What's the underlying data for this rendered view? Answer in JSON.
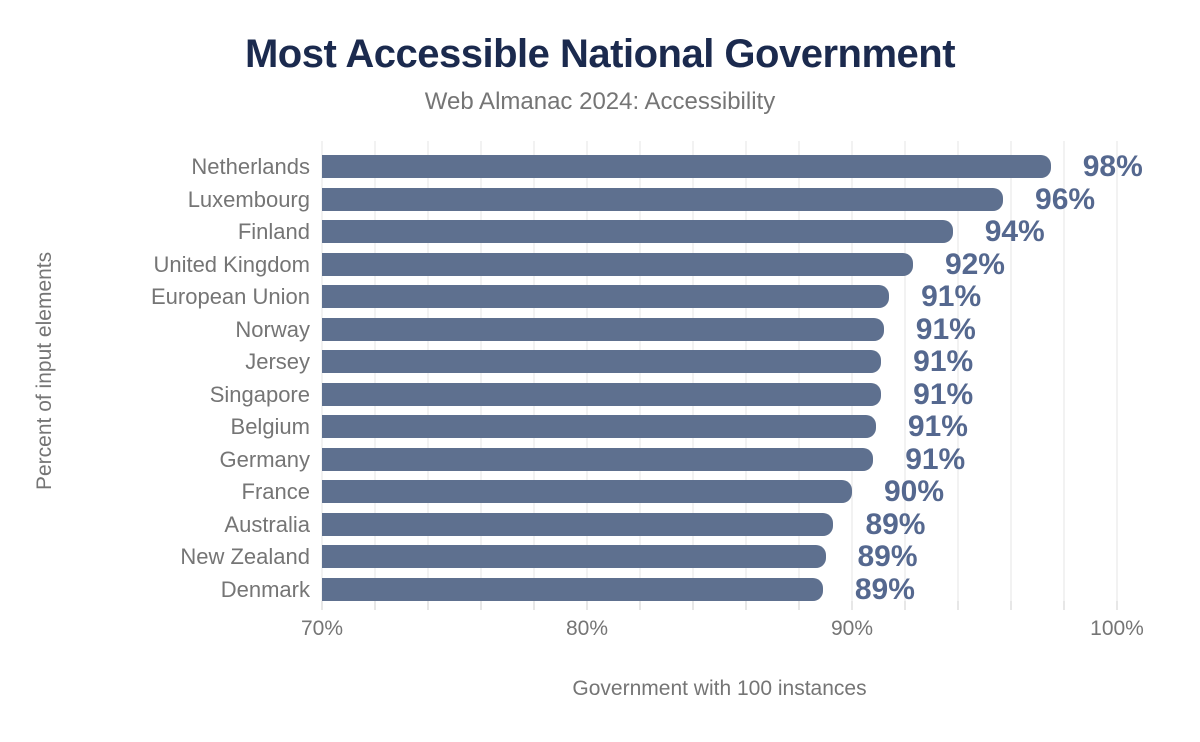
{
  "chart": {
    "title": "Most Accessible National Government",
    "subtitle": "Web Almanac 2024: Accessibility",
    "colors": {
      "title": "#1b2a4e",
      "bar": "#5e708f",
      "value_label": "#55688f",
      "muted_text": "#757575",
      "gridline": "#f2f2f2",
      "background": "#ffffff"
    }
  },
  "chart_data": {
    "type": "bar",
    "orientation": "horizontal",
    "title": "Most Accessible National Government",
    "subtitle": "Web Almanac 2024: Accessibility",
    "xlabel": "Government with 100 instances",
    "ylabel": "Percent of input elements",
    "categories": [
      "Netherlands",
      "Luxembourg",
      "Finland",
      "United Kingdom",
      "European Union",
      "Norway",
      "Jersey",
      "Singapore",
      "Belgium",
      "Germany",
      "France",
      "Australia",
      "New Zealand",
      "Denmark"
    ],
    "values": [
      98,
      96,
      94,
      92,
      91,
      91,
      91,
      91,
      91,
      91,
      90,
      89,
      89,
      89
    ],
    "value_labels": [
      "98%",
      "96%",
      "94%",
      "92%",
      "91%",
      "91%",
      "91%",
      "91%",
      "91%",
      "91%",
      "90%",
      "89%",
      "89%",
      "89%"
    ],
    "bar_lengths_pct": [
      97.5,
      95.7,
      93.8,
      92.3,
      91.4,
      91.2,
      91.1,
      91.1,
      90.9,
      90.8,
      90.0,
      89.3,
      89.0,
      88.9
    ],
    "xlim": [
      70,
      100
    ],
    "x_ticks": [
      {
        "value": 70,
        "label": "70%"
      },
      {
        "value": 80,
        "label": "80%"
      },
      {
        "value": 90,
        "label": "90%"
      },
      {
        "value": 100,
        "label": "100%"
      }
    ],
    "gridline_step_pct": 2,
    "grid": "vertical",
    "legend": "none"
  }
}
